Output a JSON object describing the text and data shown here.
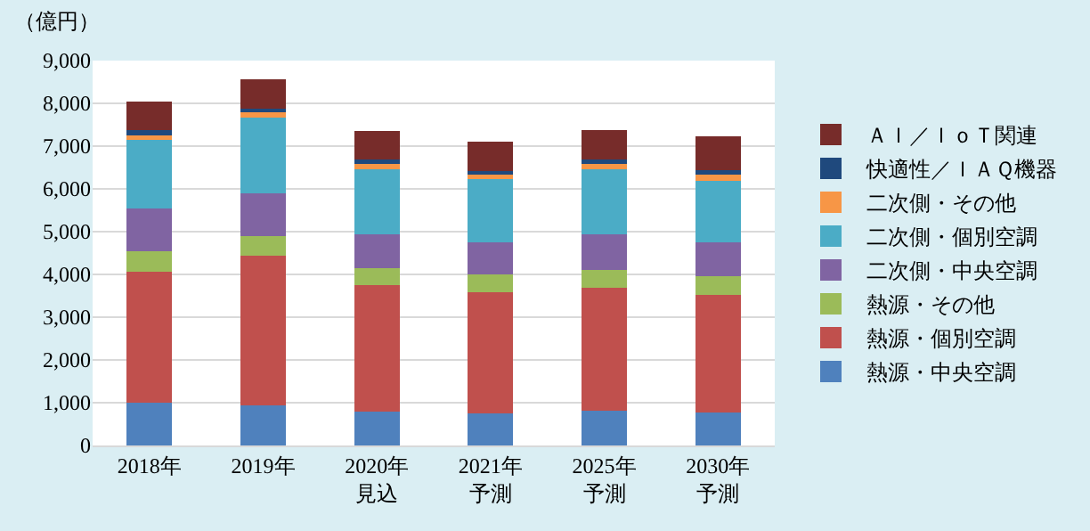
{
  "chart_data": {
    "type": "bar",
    "stacked": true,
    "ylabel": "（億円）",
    "categories": [
      "2018年",
      "2019年",
      "2020年見込",
      "2021年予測",
      "2025年予測",
      "2030年予測"
    ],
    "ylim": [
      0,
      9000
    ],
    "yticks": [
      {
        "value": 0,
        "label": "0"
      },
      {
        "value": 1000,
        "label": "1,000"
      },
      {
        "value": 2000,
        "label": "2,000"
      },
      {
        "value": 3000,
        "label": "3,000"
      },
      {
        "value": 4000,
        "label": "4,000"
      },
      {
        "value": 5000,
        "label": "5,000"
      },
      {
        "value": 6000,
        "label": "6,000"
      },
      {
        "value": 7000,
        "label": "7,000"
      },
      {
        "value": 8000,
        "label": "8,000"
      },
      {
        "value": 9000,
        "label": "9,000"
      }
    ],
    "grid": "y",
    "legend": "right",
    "series": [
      {
        "name": "熱源・中央空調",
        "color": "#4f81bd",
        "values": [
          1010,
          940,
          790,
          750,
          810,
          780
        ]
      },
      {
        "name": "熱源・個別空調",
        "color": "#c0504d",
        "values": [
          3060,
          3500,
          2950,
          2830,
          2880,
          2750
        ]
      },
      {
        "name": "熱源・その他",
        "color": "#9bbb59",
        "values": [
          470,
          460,
          400,
          410,
          420,
          430
        ]
      },
      {
        "name": "二次側・中央空調",
        "color": "#8064a2",
        "values": [
          1000,
          990,
          800,
          760,
          830,
          780
        ]
      },
      {
        "name": "二次側・個別空調",
        "color": "#4bacc6",
        "values": [
          1600,
          1780,
          1520,
          1470,
          1520,
          1440
        ]
      },
      {
        "name": "二次側・その他",
        "color": "#f79646",
        "values": [
          150,
          150,
          150,
          150,
          160,
          190
        ]
      },
      {
        "name": "快適性／ＩＡＱ機器",
        "color": "#1f497d",
        "values": [
          80,
          50,
          70,
          50,
          60,
          60
        ]
      },
      {
        "name": "ＡＩ／ＩｏＴ関連",
        "color": "#772c2a",
        "values": [
          670,
          700,
          680,
          680,
          690,
          800
        ]
      }
    ]
  }
}
